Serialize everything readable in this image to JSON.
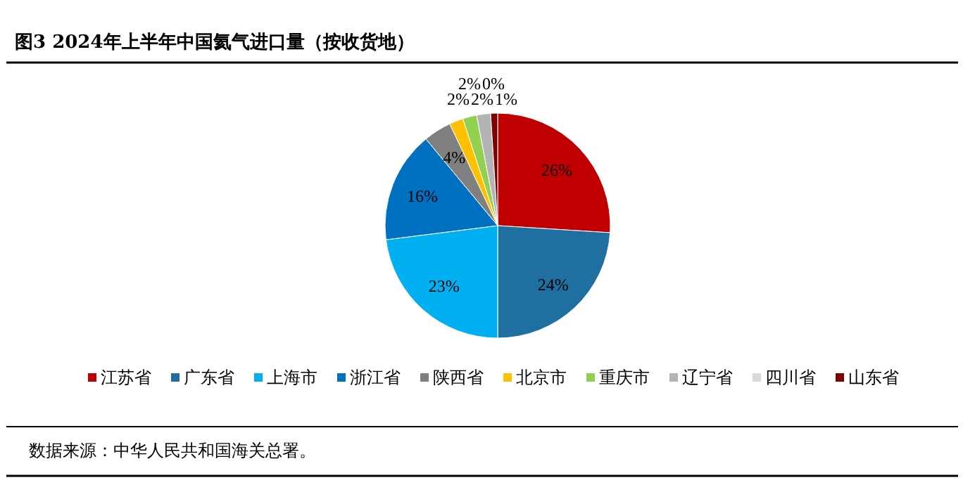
{
  "chart_data": {
    "type": "pie",
    "title": "图3 2024年上半年中国氦气进口量（按收货地）",
    "categories": [
      "江苏省",
      "广东省",
      "上海市",
      "浙江省",
      "陕西省",
      "北京市",
      "重庆市",
      "辽宁省",
      "四川省",
      "山东省"
    ],
    "values": [
      26,
      24,
      23,
      16,
      4,
      2,
      2,
      2,
      0,
      1
    ],
    "colors": [
      "#c00000",
      "#1f6fa0",
      "#00b0f0",
      "#0070c0",
      "#808080",
      "#ffc000",
      "#92d050",
      "#b4b4b4",
      "#d9d9d9",
      "#7f0000"
    ],
    "value_labels": [
      "26%",
      "24%",
      "23%",
      "16%",
      "4%",
      "2%",
      "2%",
      "2%",
      "0%",
      "1%"
    ],
    "legend": "bottom",
    "annotations": [
      "数据来源：中华人民共和国海关总署。"
    ]
  }
}
